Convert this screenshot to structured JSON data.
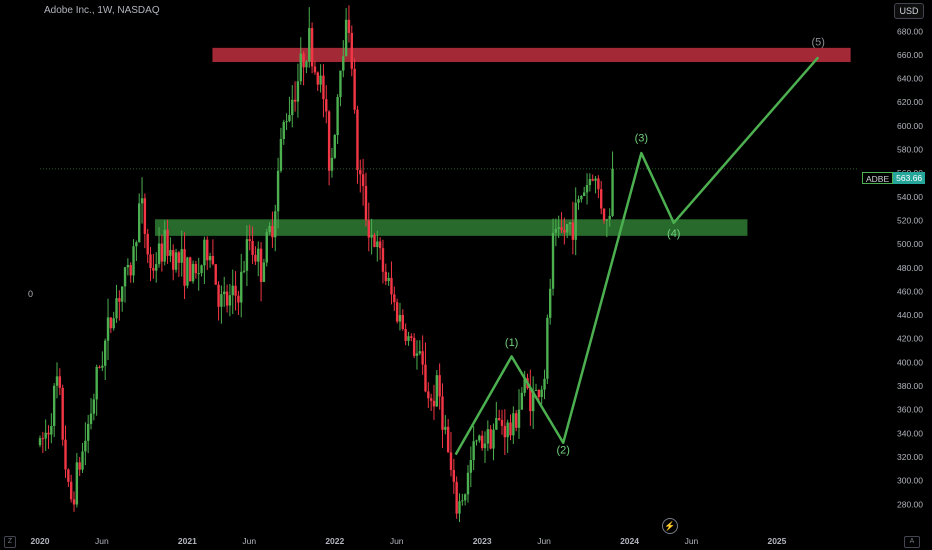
{
  "header": {
    "title": "Adobe Inc., 1W, NASDAQ",
    "currency_button": "USD"
  },
  "left_label": "0",
  "price_tag": {
    "symbol": "ADBE",
    "value": "563.66"
  },
  "toolbar": {
    "zoom_btn": "Z",
    "auto_btn": "A",
    "bolt_icon": "⚡"
  },
  "chart_data": {
    "type": "candlestick",
    "title": "Adobe Inc., 1W, NASDAQ",
    "ylim": [
      265,
      698
    ],
    "y_ticks": [
      280,
      300,
      320,
      340,
      360,
      380,
      400,
      420,
      440,
      460,
      480,
      500,
      520,
      540,
      560,
      580,
      600,
      620,
      640,
      660,
      680
    ],
    "x_range": [
      2020.0,
      2025.55
    ],
    "x_ticks": [
      {
        "label": "2020",
        "x": 2020.0
      },
      {
        "label": "Jun",
        "x": 2020.42
      },
      {
        "label": "2021",
        "x": 2021.0
      },
      {
        "label": "Jun",
        "x": 2021.42
      },
      {
        "label": "2022",
        "x": 2022.0
      },
      {
        "label": "Jun",
        "x": 2022.42
      },
      {
        "label": "2023",
        "x": 2023.0
      },
      {
        "label": "Jun",
        "x": 2023.42
      },
      {
        "label": "2024",
        "x": 2024.0
      },
      {
        "label": "Jun",
        "x": 2024.42
      },
      {
        "label": "2025",
        "x": 2025.0
      }
    ],
    "last_price": 563.66,
    "up_color": "#4caf50",
    "down_color": "#f23645",
    "price_path": [
      [
        2020.0,
        330
      ],
      [
        2020.05,
        342
      ],
      [
        2020.12,
        385
      ],
      [
        2020.2,
        278
      ],
      [
        2020.3,
        330
      ],
      [
        2020.4,
        395
      ],
      [
        2020.52,
        455
      ],
      [
        2020.62,
        480
      ],
      [
        2020.68,
        538
      ],
      [
        2020.75,
        478
      ],
      [
        2020.85,
        500
      ],
      [
        2020.95,
        485
      ],
      [
        2021.05,
        470
      ],
      [
        2021.15,
        500
      ],
      [
        2021.22,
        450
      ],
      [
        2021.28,
        450
      ],
      [
        2021.35,
        460
      ],
      [
        2021.42,
        505
      ],
      [
        2021.5,
        480
      ],
      [
        2021.58,
        520
      ],
      [
        2021.65,
        600
      ],
      [
        2021.75,
        640
      ],
      [
        2021.82,
        675
      ],
      [
        2021.86,
        650
      ],
      [
        2021.92,
        630
      ],
      [
        2021.97,
        560
      ],
      [
        2022.05,
        670
      ],
      [
        2022.1,
        690
      ],
      [
        2022.15,
        570
      ],
      [
        2022.22,
        520
      ],
      [
        2022.3,
        490
      ],
      [
        2022.4,
        450
      ],
      [
        2022.5,
        420
      ],
      [
        2022.58,
        400
      ],
      [
        2022.65,
        365
      ],
      [
        2022.7,
        380
      ],
      [
        2022.75,
        340
      ],
      [
        2022.82,
        275
      ],
      [
        2022.88,
        290
      ],
      [
        2022.95,
        330
      ],
      [
        2023.05,
        340
      ],
      [
        2023.12,
        350
      ],
      [
        2023.2,
        340
      ],
      [
        2023.28,
        380
      ],
      [
        2023.35,
        370
      ],
      [
        2023.42,
        385
      ],
      [
        2023.48,
        500
      ],
      [
        2023.55,
        510
      ],
      [
        2023.62,
        520
      ],
      [
        2023.68,
        545
      ],
      [
        2023.75,
        560
      ],
      [
        2023.8,
        540
      ],
      [
        2023.85,
        515
      ],
      [
        2023.9,
        563.66
      ]
    ],
    "zones": [
      {
        "color": "#c0303f",
        "x": [
          2021.17,
          2025.5
        ],
        "y": [
          654,
          666
        ]
      },
      {
        "color": "#2e7d32",
        "x": [
          2020.78,
          2024.8
        ],
        "y": [
          507,
          521
        ]
      }
    ],
    "wave_path": [
      [
        2022.82,
        322
      ],
      [
        2023.2,
        405
      ],
      [
        2023.55,
        332
      ],
      [
        2024.08,
        577
      ],
      [
        2024.3,
        518
      ],
      [
        2025.28,
        658
      ]
    ],
    "wave_labels": [
      {
        "text": "(1)",
        "x": 2023.2,
        "y": 414
      },
      {
        "text": "(2)",
        "x": 2023.55,
        "y": 323
      },
      {
        "text": "(3)",
        "x": 2024.08,
        "y": 587
      },
      {
        "text": "(4)",
        "x": 2024.3,
        "y": 506
      },
      {
        "text": "(5)",
        "x": 2025.28,
        "y": 668
      }
    ]
  }
}
